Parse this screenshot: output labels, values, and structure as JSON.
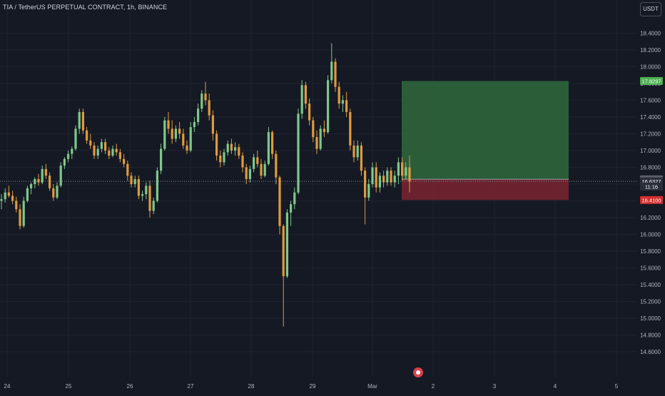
{
  "header": {
    "title": "TIA / TetherUS PERPETUAL CONTRACT, 1h, BINANCE",
    "currency": "USDT"
  },
  "colors": {
    "background": "#151924",
    "grid": "#1f2330",
    "up": "#7ec88a",
    "down": "#e09a3e",
    "profit_zone": "#2e6a3c",
    "loss_zone": "#7a2430",
    "label_green": "#4caf50",
    "label_red": "#d32f2f",
    "label_gray": "#5d606b"
  },
  "chart_data": {
    "type": "candlestick",
    "symbol": "TIA / TetherUS PERPETUAL CONTRACT",
    "timeframe": "1h",
    "exchange": "BINANCE",
    "x_ticks": [
      "24",
      "25",
      "26",
      "27",
      "28",
      "29",
      "Mar",
      "2",
      "3",
      "4",
      "5"
    ],
    "y_ticks": [
      "14.6000",
      "14.8000",
      "15.0000",
      "15.2000",
      "15.4000",
      "15.6000",
      "15.8000",
      "16.0000",
      "16.2000",
      "16.4000",
      "16.6000",
      "16.8000",
      "17.0000",
      "17.2000",
      "17.4000",
      "17.6000",
      "17.8000",
      "18.0000",
      "18.2000",
      "18.4000"
    ],
    "ylim": [
      14.57,
      18.62
    ],
    "position": {
      "type": "long",
      "entry": 16.6576,
      "target": 17.8297,
      "stop": 16.41,
      "start_date": "Mar 1",
      "end_date": "Mar 4"
    },
    "price_labels": [
      {
        "value": "17.8297",
        "price": 17.8297,
        "style": "green"
      },
      {
        "value": "16.6576",
        "price": 16.6576,
        "style": "gray"
      },
      {
        "value": "16.6327",
        "price": 16.6327,
        "style": "dark"
      },
      {
        "value": "11:16",
        "price": 16.57,
        "style": "dark"
      },
      {
        "value": "16.4100",
        "price": 16.41,
        "style": "red"
      }
    ],
    "last_price": 16.6327,
    "candles": [
      [
        16.4,
        16.48,
        16.3,
        16.42
      ],
      [
        16.42,
        16.55,
        16.38,
        16.5
      ],
      [
        16.5,
        16.58,
        16.44,
        16.46
      ],
      [
        16.46,
        16.52,
        16.36,
        16.4
      ],
      [
        16.4,
        16.45,
        16.26,
        16.3
      ],
      [
        16.3,
        16.36,
        16.06,
        16.1
      ],
      [
        16.1,
        16.45,
        16.08,
        16.4
      ],
      [
        16.4,
        16.58,
        16.38,
        16.55
      ],
      [
        16.55,
        16.62,
        16.48,
        16.6
      ],
      [
        16.6,
        16.68,
        16.55,
        16.66
      ],
      [
        16.66,
        16.72,
        16.58,
        16.62
      ],
      [
        16.62,
        16.82,
        16.6,
        16.78
      ],
      [
        16.78,
        16.84,
        16.66,
        16.7
      ],
      [
        16.7,
        16.74,
        16.52,
        16.55
      ],
      [
        16.55,
        16.6,
        16.4,
        16.44
      ],
      [
        16.44,
        16.62,
        16.42,
        16.58
      ],
      [
        16.58,
        16.86,
        16.56,
        16.82
      ],
      [
        16.82,
        16.92,
        16.78,
        16.9
      ],
      [
        16.9,
        17.0,
        16.86,
        16.96
      ],
      [
        16.96,
        17.05,
        16.9,
        17.02
      ],
      [
        17.02,
        17.3,
        17.0,
        17.26
      ],
      [
        17.26,
        17.5,
        17.2,
        17.46
      ],
      [
        17.46,
        17.5,
        17.2,
        17.24
      ],
      [
        17.24,
        17.28,
        17.08,
        17.12
      ],
      [
        17.12,
        17.2,
        17.02,
        17.06
      ],
      [
        17.06,
        17.1,
        16.9,
        16.94
      ],
      [
        16.94,
        17.06,
        16.9,
        17.02
      ],
      [
        17.02,
        17.14,
        16.98,
        17.1
      ],
      [
        17.1,
        17.14,
        16.96,
        17.0
      ],
      [
        17.0,
        17.04,
        16.9,
        16.94
      ],
      [
        16.94,
        17.06,
        16.92,
        17.02
      ],
      [
        17.02,
        17.08,
        16.94,
        16.98
      ],
      [
        16.98,
        17.02,
        16.86,
        16.9
      ],
      [
        16.9,
        16.96,
        16.8,
        16.84
      ],
      [
        16.84,
        16.88,
        16.64,
        16.7
      ],
      [
        16.7,
        16.74,
        16.56,
        16.6
      ],
      [
        16.6,
        16.7,
        16.56,
        16.66
      ],
      [
        16.66,
        16.7,
        16.42,
        16.46
      ],
      [
        16.46,
        16.52,
        16.4,
        16.48
      ],
      [
        16.48,
        16.62,
        16.42,
        16.58
      ],
      [
        16.58,
        16.64,
        16.2,
        16.28
      ],
      [
        16.28,
        16.44,
        16.24,
        16.4
      ],
      [
        16.4,
        16.8,
        16.38,
        16.76
      ],
      [
        16.76,
        17.08,
        16.72,
        17.02
      ],
      [
        17.02,
        17.4,
        17.0,
        17.36
      ],
      [
        17.36,
        17.46,
        17.2,
        17.26
      ],
      [
        17.26,
        17.36,
        17.08,
        17.14
      ],
      [
        17.14,
        17.3,
        17.1,
        17.26
      ],
      [
        17.26,
        17.34,
        17.14,
        17.2
      ],
      [
        17.2,
        17.26,
        17.02,
        17.06
      ],
      [
        17.06,
        17.12,
        16.96,
        17.0
      ],
      [
        17.0,
        17.34,
        16.98,
        17.28
      ],
      [
        17.28,
        17.4,
        17.22,
        17.34
      ],
      [
        17.34,
        17.56,
        17.3,
        17.5
      ],
      [
        17.5,
        17.72,
        17.46,
        17.68
      ],
      [
        17.68,
        17.82,
        17.54,
        17.6
      ],
      [
        17.6,
        17.68,
        17.36,
        17.42
      ],
      [
        17.42,
        17.48,
        17.12,
        17.2
      ],
      [
        17.2,
        17.24,
        16.88,
        16.94
      ],
      [
        16.94,
        17.0,
        16.8,
        16.86
      ],
      [
        16.86,
        17.02,
        16.82,
        16.98
      ],
      [
        16.98,
        17.12,
        16.94,
        17.08
      ],
      [
        17.08,
        17.14,
        16.96,
        17.0
      ],
      [
        17.0,
        17.1,
        16.94,
        17.04
      ],
      [
        17.04,
        17.08,
        16.9,
        16.94
      ],
      [
        16.94,
        16.98,
        16.74,
        16.8
      ],
      [
        16.8,
        16.84,
        16.6,
        16.66
      ],
      [
        16.66,
        16.82,
        16.62,
        16.78
      ],
      [
        16.78,
        16.96,
        16.74,
        16.92
      ],
      [
        16.92,
        17.0,
        16.8,
        16.84
      ],
      [
        16.84,
        16.9,
        16.66,
        16.7
      ],
      [
        16.7,
        16.88,
        16.68,
        16.84
      ],
      [
        16.84,
        17.28,
        16.82,
        17.22
      ],
      [
        17.22,
        17.24,
        16.9,
        16.96
      ],
      [
        16.96,
        17.0,
        16.6,
        16.68
      ],
      [
        16.68,
        16.7,
        16.0,
        16.1
      ],
      [
        16.1,
        16.12,
        14.9,
        15.5
      ],
      [
        15.5,
        16.3,
        15.48,
        16.26
      ],
      [
        16.26,
        16.4,
        16.1,
        16.36
      ],
      [
        16.36,
        16.56,
        16.3,
        16.5
      ],
      [
        16.5,
        17.5,
        16.48,
        17.44
      ],
      [
        17.44,
        17.84,
        17.38,
        17.78
      ],
      [
        17.78,
        17.82,
        17.5,
        17.56
      ],
      [
        17.56,
        17.62,
        17.3,
        17.36
      ],
      [
        17.36,
        17.4,
        17.1,
        17.16
      ],
      [
        17.16,
        17.24,
        16.96,
        17.02
      ],
      [
        17.02,
        17.3,
        17.0,
        17.26
      ],
      [
        17.26,
        17.36,
        17.16,
        17.22
      ],
      [
        17.22,
        17.9,
        17.2,
        17.84
      ],
      [
        17.84,
        18.28,
        17.8,
        18.06
      ],
      [
        18.06,
        18.1,
        17.7,
        17.76
      ],
      [
        17.76,
        17.82,
        17.5,
        17.56
      ],
      [
        17.56,
        17.66,
        17.46,
        17.6
      ],
      [
        17.6,
        17.7,
        17.4,
        17.46
      ],
      [
        17.46,
        17.5,
        17.0,
        17.06
      ],
      [
        17.06,
        17.12,
        16.86,
        16.92
      ],
      [
        16.92,
        17.12,
        16.88,
        17.06
      ],
      [
        17.06,
        17.1,
        16.7,
        16.76
      ],
      [
        16.76,
        16.8,
        16.12,
        16.44
      ],
      [
        16.44,
        16.66,
        16.4,
        16.6
      ],
      [
        16.6,
        16.86,
        16.56,
        16.8
      ],
      [
        16.8,
        16.86,
        16.5,
        16.56
      ],
      [
        16.56,
        16.74,
        16.5,
        16.7
      ],
      [
        16.7,
        16.76,
        16.56,
        16.62
      ],
      [
        16.62,
        16.8,
        16.58,
        16.76
      ],
      [
        16.76,
        16.8,
        16.58,
        16.62
      ],
      [
        16.62,
        16.76,
        16.56,
        16.7
      ],
      [
        16.7,
        16.92,
        16.6,
        16.86
      ],
      [
        16.86,
        16.92,
        16.64,
        16.7
      ],
      [
        16.7,
        16.86,
        16.66,
        16.8
      ],
      [
        16.8,
        16.94,
        16.5,
        16.63
      ]
    ]
  }
}
